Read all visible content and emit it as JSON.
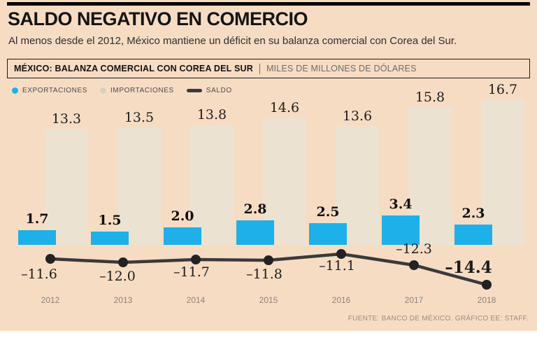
{
  "header": {
    "title": "SALDO NEGATIVO EN COMERCIO",
    "subtitle": "Al menos desde el 2012, México mantiene un déficit en su balanza comercial con Corea del Sur.",
    "chart_title": "MÉXICO: BALANZA COMERCIAL CON COREA DEL SUR",
    "units": "MILES DE MILLONES DE DÓLARES"
  },
  "legend": [
    {
      "label": "EXPORTACIONES",
      "marker": "dot",
      "color": "#1db0e9"
    },
    {
      "label": "IMPORTACIONES",
      "marker": "dot",
      "color": "#d9d0c0"
    },
    {
      "label": "SALDO",
      "marker": "line",
      "color": "#3a3a3a"
    }
  ],
  "chart_data": {
    "type": "bar",
    "title": "MÉXICO: BALANZA COMERCIAL CON COREA DEL SUR",
    "subtitle": "MILES DE MILLONES DE DÓLARES",
    "categories": [
      "2012",
      "2013",
      "2014",
      "2015",
      "2016",
      "2017",
      "2018"
    ],
    "series": [
      {
        "name": "EXPORTACIONES",
        "type": "bar",
        "color": "#1db0e9",
        "values": [
          1.7,
          1.5,
          2.0,
          2.8,
          2.5,
          3.4,
          2.3
        ]
      },
      {
        "name": "IMPORTACIONES",
        "type": "bar",
        "color": "#ebe2d1",
        "values": [
          13.3,
          13.5,
          13.8,
          14.6,
          13.6,
          15.8,
          16.7
        ]
      },
      {
        "name": "SALDO",
        "type": "line",
        "color": "#3a3a3a",
        "values": [
          -11.6,
          -12.0,
          -11.7,
          -11.8,
          -11.1,
          -12.3,
          -14.4
        ]
      }
    ],
    "value_labels": {
      "exportaciones": [
        "1.7",
        "1.5",
        "2.0",
        "2.8",
        "2.5",
        "3.4",
        "2.3"
      ],
      "importaciones": [
        "13.3",
        "13.5",
        "13.8",
        "14.6",
        "13.6",
        "15.8",
        "16.7"
      ],
      "saldo": [
        "–11.6",
        "–12.0",
        "–11.7",
        "–11.8",
        "–11.1",
        "–12.3",
        "–14.4"
      ]
    },
    "ylim": [
      0,
      18
    ],
    "grid": false,
    "legend_position": "top-left"
  },
  "footer": {
    "source": "FUENTE: BANCO DE MÉXICO. GRÁFICO EE: STAFF."
  }
}
